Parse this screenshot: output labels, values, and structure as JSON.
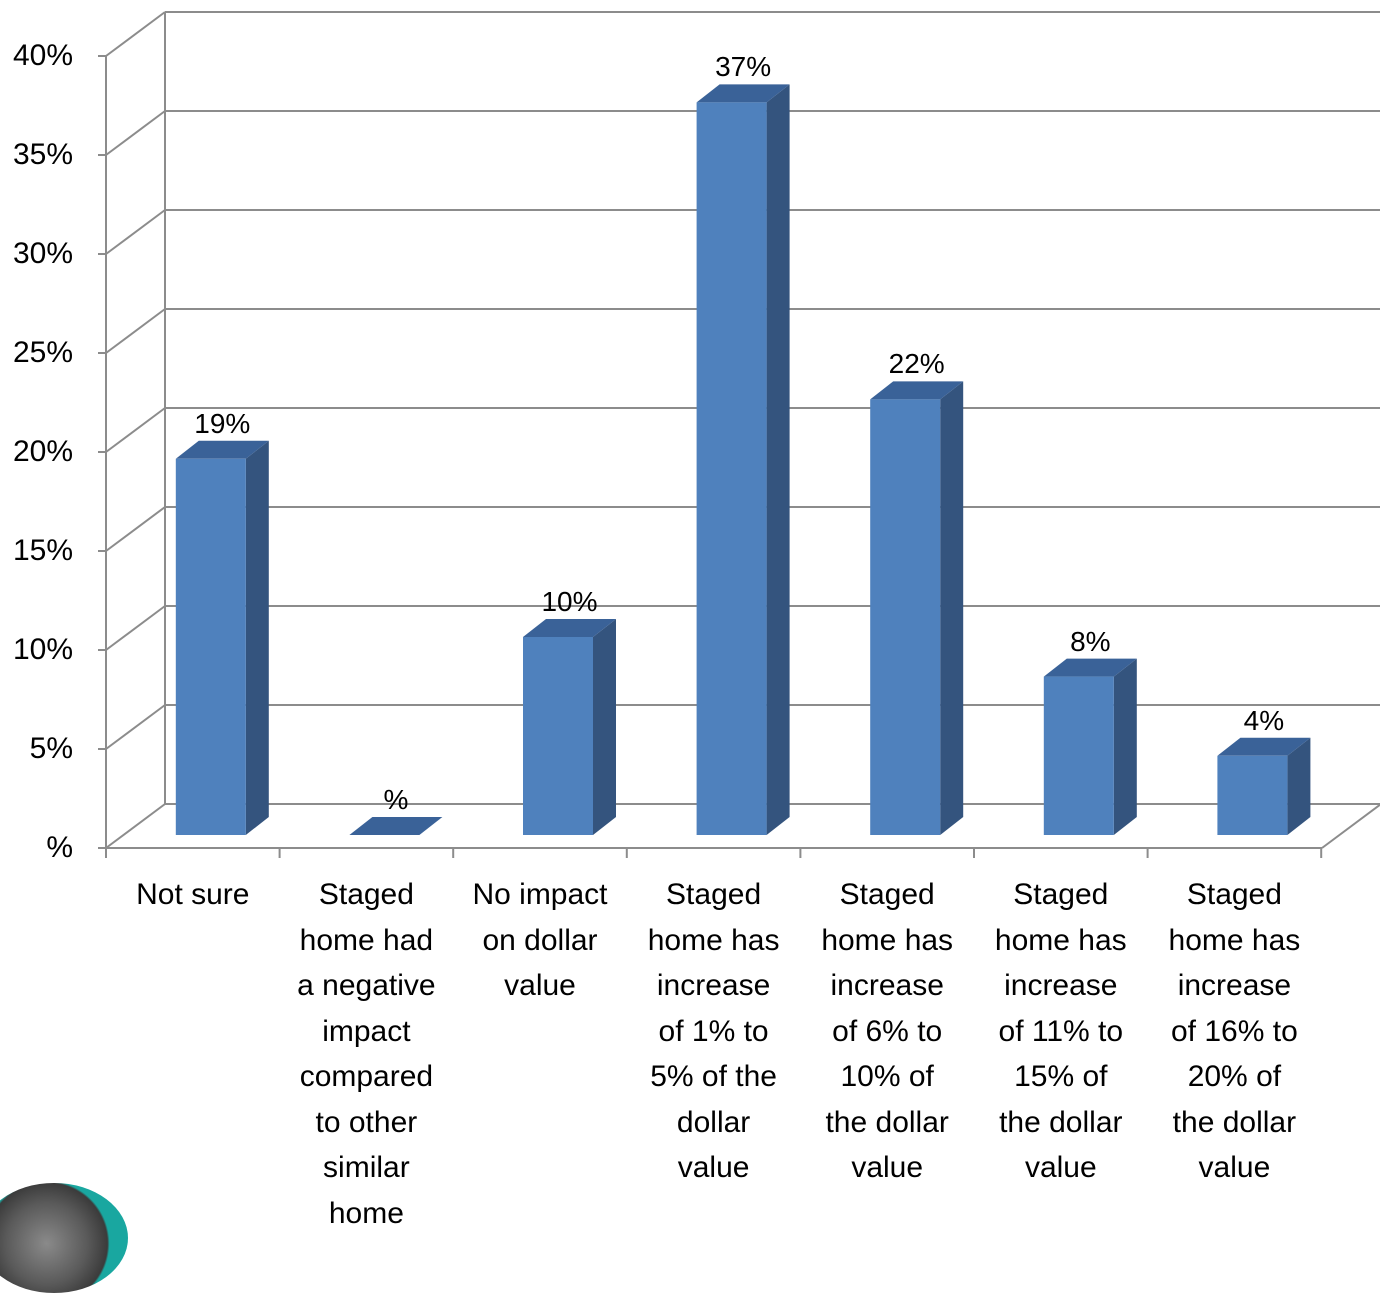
{
  "chart_data": {
    "type": "bar",
    "categories": [
      "Not sure",
      "Staged home had a negative impact compared to other similar home",
      "No impact on dollar value",
      "Staged home has increase of 1% to 5% of the dollar value",
      "Staged home has increase of 6% to 10% of the dollar value",
      "Staged home has increase of 11% to 15% of the dollar value",
      "Staged home has increase of 16% to 20% of the dollar value"
    ],
    "category_lines": [
      [
        "Not sure"
      ],
      [
        "Staged",
        "home had",
        "a negative",
        "impact",
        "compared",
        "to other",
        "similar",
        "home"
      ],
      [
        "No impact",
        "on dollar",
        "value"
      ],
      [
        "Staged",
        "home has",
        "increase",
        "of 1% to",
        "5% of the",
        "dollar",
        "value"
      ],
      [
        "Staged",
        "home has",
        "increase",
        "of 6% to",
        "10% of",
        "the dollar",
        "value"
      ],
      [
        "Staged",
        "home has",
        "increase",
        "of 11% to",
        "15% of",
        "the dollar",
        "value"
      ],
      [
        "Staged",
        "home has",
        "increase",
        "of 16% to",
        "20% of",
        "the dollar",
        "value"
      ]
    ],
    "values": [
      19,
      0,
      10,
      37,
      22,
      8,
      4
    ],
    "data_labels": [
      "19%",
      "%",
      "10%",
      "37%",
      "22%",
      "8%",
      "4%"
    ],
    "y_ticks": [
      "%",
      "5%",
      "10%",
      "15%",
      "20%",
      "25%",
      "30%",
      "35%",
      "40%"
    ],
    "ylim": [
      0,
      40
    ],
    "grid": true,
    "style": "3d-column",
    "colors": {
      "bar_front": "#4f81bd",
      "bar_side": "#34547e",
      "bar_top": "#3a6298",
      "grid": "#8c8c8c"
    }
  }
}
